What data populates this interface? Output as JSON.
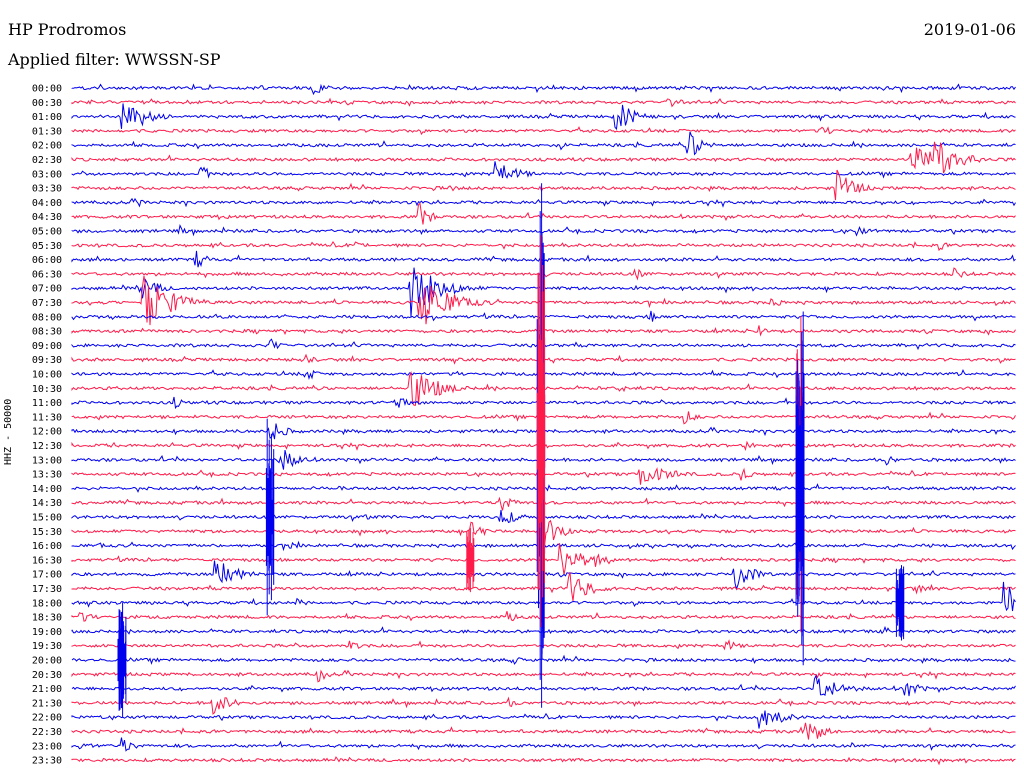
{
  "header": {
    "station": "HP Prodromos",
    "date": "2019-01-06",
    "filter": "Applied filter: WWSSN-SP"
  },
  "channel_label": "HHZ - 50000",
  "chart_data": {
    "type": "line",
    "title": "HP Prodromos",
    "subtitle": "Applied filter: WWSSN-SP",
    "ylabel": "HHZ - 50000",
    "row_labels": [
      "00:00",
      "00:30",
      "01:00",
      "01:30",
      "02:00",
      "02:30",
      "03:00",
      "03:30",
      "04:00",
      "04:30",
      "05:00",
      "05:30",
      "06:00",
      "06:30",
      "07:00",
      "07:30",
      "08:00",
      "08:30",
      "09:00",
      "09:30",
      "10:00",
      "10:30",
      "11:00",
      "11:30",
      "12:00",
      "12:30",
      "13:00",
      "13:30",
      "14:00",
      "14:30",
      "15:00",
      "15:30",
      "16:00",
      "16:30",
      "17:00",
      "17:30",
      "18:00",
      "18:30",
      "19:00",
      "19:30",
      "20:00",
      "20:30",
      "21:00",
      "21:30",
      "22:00",
      "22:30",
      "23:00",
      "23:30"
    ],
    "colors": [
      "#0000ee",
      "#ff1a4a"
    ],
    "grid": false,
    "legend": "none"
  }
}
